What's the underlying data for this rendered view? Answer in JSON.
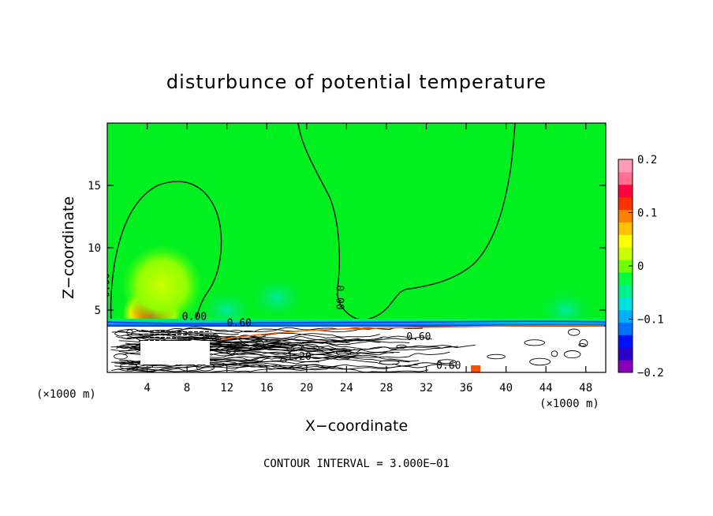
{
  "chart_data": {
    "type": "heatmap",
    "title": "disturbunce of potential temperature",
    "xlabel": "X−coordinate",
    "ylabel": "Z−coordinate",
    "x_unit": "(×1000 m)",
    "x_unit_right": "(×1000 m)",
    "xlim": [
      0,
      50
    ],
    "ylim": [
      0,
      20
    ],
    "xticks": [
      4,
      8,
      12,
      16,
      20,
      24,
      28,
      32,
      36,
      40,
      44,
      48
    ],
    "yticks": [
      5,
      10,
      15
    ],
    "footer": "CONTOUR INTERVAL = 3.000E−01",
    "colorbar": {
      "vmin": -0.2,
      "vmax": 0.2,
      "ticks": [
        {
          "value": 0.2,
          "label": "0.2"
        },
        {
          "value": 0.1,
          "label": "0.1"
        },
        {
          "value": 0,
          "label": "0"
        },
        {
          "value": -0.1,
          "label": "−0.1"
        },
        {
          "value": -0.2,
          "label": "−0.2"
        }
      ],
      "colors": [
        "#8a00b8",
        "#2a00c8",
        "#0010ff",
        "#0070ff",
        "#00b0ff",
        "#00e0e0",
        "#00f090",
        "#00ff40",
        "#70ff00",
        "#c8ff00",
        "#ffff00",
        "#ffc000",
        "#ff8000",
        "#ff3000",
        "#ff0040",
        "#ff7090",
        "#ff9cb8"
      ]
    },
    "background_value": 0.0,
    "blobs": [
      {
        "x": 4.5,
        "z": 4.7,
        "value": 0.18
      },
      {
        "x": 5.5,
        "z": 7.0,
        "value": 0.06
      },
      {
        "x": 17.0,
        "z": 6.0,
        "value": -0.03
      },
      {
        "x": 46.0,
        "z": 5.0,
        "value": -0.03
      },
      {
        "x": 12.0,
        "z": 5.0,
        "value": -0.02
      }
    ],
    "contour_labels": [
      {
        "x": 0.2,
        "z": 6.0,
        "text": "0.00",
        "rotate": -90
      },
      {
        "x": 7.5,
        "z": 4.2,
        "text": "0.00",
        "rotate": 0
      },
      {
        "x": 12.0,
        "z": 3.7,
        "text": "0.60",
        "rotate": 0
      },
      {
        "x": 23.0,
        "z": 7.0,
        "text": "0.00",
        "rotate": 90
      },
      {
        "x": 30.0,
        "z": 2.6,
        "text": "0.60",
        "rotate": 0
      },
      {
        "x": 18.0,
        "z": 1.0,
        "text": "1.20",
        "rotate": 0
      },
      {
        "x": 33.0,
        "z": 0.3,
        "text": "0.60",
        "rotate": 0
      }
    ]
  }
}
